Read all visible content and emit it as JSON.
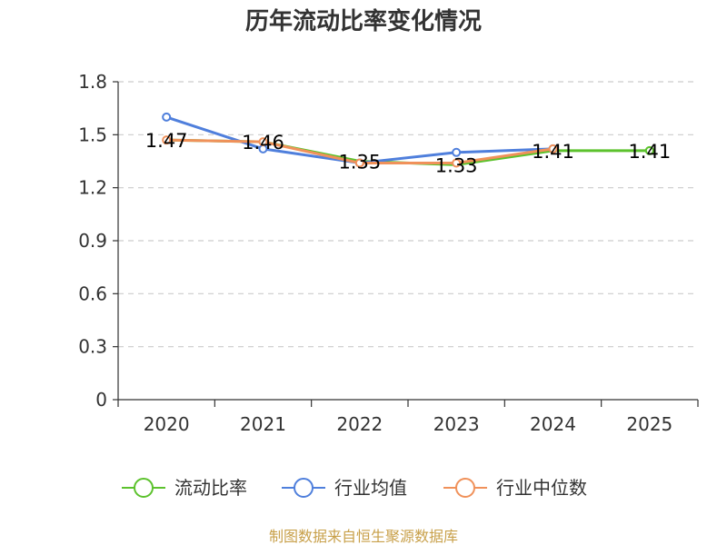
{
  "chart_data": {
    "type": "line",
    "title": "历年流动比率变化情况",
    "categories": [
      "2020",
      "2021",
      "2022",
      "2023",
      "2024",
      "2025"
    ],
    "ylim": [
      0,
      1.8
    ],
    "yticks": [
      "0",
      "0.3",
      "0.6",
      "0.9",
      "1.2",
      "1.5",
      "1.8"
    ],
    "grid": true,
    "legend_position": "bottom",
    "series": [
      {
        "name": "流动比率",
        "color": "#5cc22d",
        "values": [
          1.47,
          1.46,
          1.35,
          1.33,
          1.41,
          1.41
        ],
        "labels": [
          "1.47",
          "1.46",
          "1.35",
          "1.33",
          "1.41",
          "1.41"
        ]
      },
      {
        "name": "行业均值",
        "color": "#4f7fdc",
        "values": [
          1.6,
          1.42,
          1.34,
          1.4,
          1.42,
          null
        ]
      },
      {
        "name": "行业中位数",
        "color": "#f0915a",
        "values": [
          1.47,
          1.46,
          1.34,
          1.34,
          1.42,
          null
        ]
      }
    ],
    "source": "制图数据来自恒生聚源数据库"
  }
}
